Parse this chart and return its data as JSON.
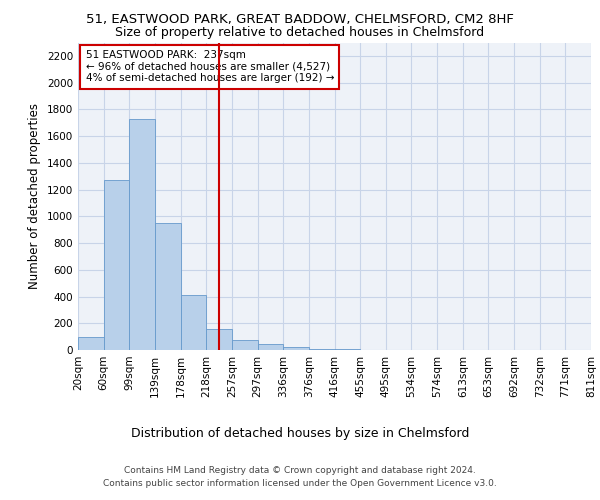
{
  "title_line1": "51, EASTWOOD PARK, GREAT BADDOW, CHELMSFORD, CM2 8HF",
  "title_line2": "Size of property relative to detached houses in Chelmsford",
  "xlabel": "Distribution of detached houses by size in Chelmsford",
  "ylabel": "Number of detached properties",
  "footer_line1": "Contains HM Land Registry data © Crown copyright and database right 2024.",
  "footer_line2": "Contains public sector information licensed under the Open Government Licence v3.0.",
  "bar_values": [
    100,
    1270,
    1730,
    950,
    415,
    155,
    75,
    45,
    25,
    10,
    5,
    3,
    2,
    1,
    1,
    0,
    0,
    0,
    0,
    0
  ],
  "bin_labels": [
    "20sqm",
    "60sqm",
    "99sqm",
    "139sqm",
    "178sqm",
    "218sqm",
    "257sqm",
    "297sqm",
    "336sqm",
    "376sqm",
    "416sqm",
    "455sqm",
    "495sqm",
    "534sqm",
    "574sqm",
    "613sqm",
    "653sqm",
    "692sqm",
    "732sqm",
    "771sqm",
    "811sqm"
  ],
  "bar_color": "#b8d0ea",
  "bar_edge_color": "#6699cc",
  "grid_color": "#c8d4e8",
  "bg_color": "#eef2f8",
  "vline_color": "#cc0000",
  "vline_x": 5.51,
  "annotation_text": "51 EASTWOOD PARK:  237sqm\n← 96% of detached houses are smaller (4,527)\n4% of semi-detached houses are larger (192) →",
  "annotation_box_color": "#cc0000",
  "ylim": [
    0,
    2300
  ],
  "yticks": [
    0,
    200,
    400,
    600,
    800,
    1000,
    1200,
    1400,
    1600,
    1800,
    2000,
    2200
  ],
  "title_fontsize": 9.5,
  "subtitle_fontsize": 9,
  "ylabel_fontsize": 8.5,
  "xlabel_fontsize": 9,
  "tick_fontsize": 7.5,
  "annotation_fontsize": 7.5,
  "footer_fontsize": 6.5
}
